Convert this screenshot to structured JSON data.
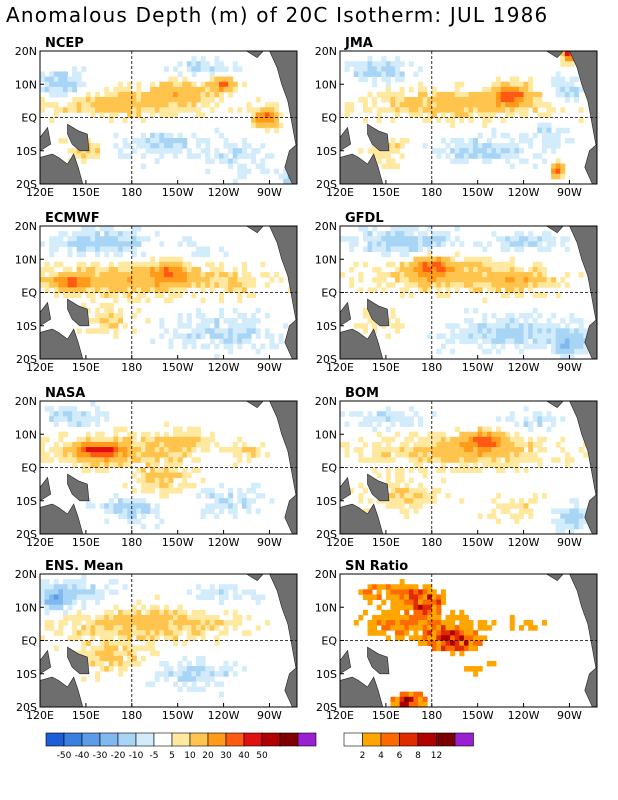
{
  "figure": {
    "title": "Anomalous Depth (m) of 20C Isotherm: JUL 1986"
  },
  "axes": {
    "x_ticks": [
      "120E",
      "150E",
      "180",
      "150W",
      "120W",
      "90W"
    ],
    "y_ticks": [
      "20N",
      "10N",
      "EQ",
      "10S",
      "20S"
    ]
  },
  "colorbars": {
    "anomaly": {
      "labels": [
        "-50",
        "-40",
        "-30",
        "-20",
        "-10",
        "-5",
        "5",
        "10",
        "20",
        "30",
        "40",
        "50"
      ],
      "colors": [
        "#1a5fd6",
        "#3a7fe0",
        "#5b9be8",
        "#80b8ef",
        "#a8d4f5",
        "#d2ecfb",
        "#ffffff",
        "#ffe9a0",
        "#ffc44d",
        "#ff9a1a",
        "#ff5a14",
        "#e01010",
        "#b00000",
        "#800000",
        "#9a1fd0"
      ]
    },
    "sn_ratio": {
      "labels": [
        "2",
        "4",
        "6",
        "8",
        "12"
      ],
      "colors": [
        "#ffffff",
        "#ffa500",
        "#ff6a00",
        "#e02a00",
        "#b00000",
        "#7a0000",
        "#9a1fd0"
      ]
    }
  },
  "chart_data": [
    {
      "type": "heatmap",
      "title": "NCEP",
      "x_ticks": [
        "120E",
        "150E",
        "180",
        "150W",
        "120W",
        "90W"
      ],
      "y_ticks": [
        "20N",
        "10N",
        "EQ",
        "10S",
        "20S"
      ],
      "xlim": [
        120,
        288
      ],
      "ylim": [
        -20,
        20
      ],
      "values": "anomaly (m)",
      "blobs": [
        {
          "lon": 175,
          "lat": 4,
          "rx": 45,
          "ry": 4,
          "v": 15
        },
        {
          "lon": 215,
          "lat": 8,
          "rx": 22,
          "ry": 3,
          "v": 15
        },
        {
          "lon": 240,
          "lat": 10,
          "rx": 6,
          "ry": 2,
          "v": 32
        },
        {
          "lon": 268,
          "lat": 0,
          "rx": 8,
          "ry": 3,
          "v": 30
        },
        {
          "lon": 150,
          "lat": -10,
          "rx": 12,
          "ry": 3,
          "v": 12
        },
        {
          "lon": 135,
          "lat": 10,
          "rx": 15,
          "ry": 4,
          "v": -15
        },
        {
          "lon": 200,
          "lat": -8,
          "rx": 28,
          "ry": 4,
          "v": -12
        },
        {
          "lon": 250,
          "lat": -12,
          "rx": 18,
          "ry": 5,
          "v": -8
        },
        {
          "lon": 225,
          "lat": 15,
          "rx": 18,
          "ry": 3,
          "v": -10
        },
        {
          "lon": 285,
          "lat": -18,
          "rx": 5,
          "ry": 2,
          "v": -25
        }
      ]
    },
    {
      "type": "heatmap",
      "title": "JMA",
      "x_ticks": [
        "120E",
        "150E",
        "180",
        "150W",
        "120W",
        "90W"
      ],
      "y_ticks": [
        "20N",
        "10N",
        "EQ",
        "10S",
        "20S"
      ],
      "xlim": [
        120,
        288
      ],
      "ylim": [
        -20,
        20
      ],
      "values": "anomaly (m)",
      "blobs": [
        {
          "lon": 200,
          "lat": 4,
          "rx": 60,
          "ry": 4,
          "v": 15
        },
        {
          "lon": 232,
          "lat": 7,
          "rx": 12,
          "ry": 3,
          "v": 30
        },
        {
          "lon": 262,
          "lat": -16,
          "rx": 4,
          "ry": 2,
          "v": 35
        },
        {
          "lon": 150,
          "lat": -10,
          "rx": 12,
          "ry": 4,
          "v": 12
        },
        {
          "lon": 145,
          "lat": 14,
          "rx": 22,
          "ry": 3,
          "v": -12
        },
        {
          "lon": 215,
          "lat": -10,
          "rx": 30,
          "ry": 4,
          "v": -12
        },
        {
          "lon": 268,
          "lat": 8,
          "rx": 10,
          "ry": 4,
          "v": -15
        },
        {
          "lon": 255,
          "lat": -5,
          "rx": 10,
          "ry": 4,
          "v": -8
        },
        {
          "lon": 270,
          "lat": 19,
          "rx": 4,
          "ry": 2,
          "v": 45
        }
      ]
    },
    {
      "type": "heatmap",
      "title": "ECMWF",
      "x_ticks": [
        "120E",
        "150E",
        "180",
        "150W",
        "120W",
        "90W"
      ],
      "y_ticks": [
        "20N",
        "10N",
        "EQ",
        "10S",
        "20S"
      ],
      "xlim": [
        120,
        288
      ],
      "ylim": [
        -20,
        20
      ],
      "values": "anomaly (m)",
      "blobs": [
        {
          "lon": 185,
          "lat": 4,
          "rx": 60,
          "ry": 5,
          "v": 17
        },
        {
          "lon": 140,
          "lat": 3,
          "rx": 12,
          "ry": 2,
          "v": 28
        },
        {
          "lon": 205,
          "lat": 6,
          "rx": 10,
          "ry": 3,
          "v": 22
        },
        {
          "lon": 165,
          "lat": -8,
          "rx": 20,
          "ry": 4,
          "v": 10
        },
        {
          "lon": 160,
          "lat": 15,
          "rx": 30,
          "ry": 4,
          "v": -14
        },
        {
          "lon": 240,
          "lat": -12,
          "rx": 35,
          "ry": 5,
          "v": -10
        },
        {
          "lon": 225,
          "lat": 12,
          "rx": 20,
          "ry": 3,
          "v": -8
        },
        {
          "lon": 250,
          "lat": 2,
          "rx": 10,
          "ry": 3,
          "v": 8
        }
      ]
    },
    {
      "type": "heatmap",
      "title": "GFDL",
      "x_ticks": [
        "120E",
        "150E",
        "180",
        "150W",
        "120W",
        "90W"
      ],
      "y_ticks": [
        "20N",
        "10N",
        "EQ",
        "10S",
        "20S"
      ],
      "xlim": [
        120,
        288
      ],
      "ylim": [
        -20,
        20
      ],
      "values": "anomaly (m)",
      "blobs": [
        {
          "lon": 195,
          "lat": 5,
          "rx": 55,
          "ry": 5,
          "v": 15
        },
        {
          "lon": 180,
          "lat": 8,
          "rx": 12,
          "ry": 3,
          "v": 25
        },
        {
          "lon": 240,
          "lat": 3,
          "rx": 20,
          "ry": 3,
          "v": 10
        },
        {
          "lon": 145,
          "lat": -8,
          "rx": 15,
          "ry": 4,
          "v": 8
        },
        {
          "lon": 160,
          "lat": 15,
          "rx": 30,
          "ry": 4,
          "v": -15
        },
        {
          "lon": 230,
          "lat": -12,
          "rx": 35,
          "ry": 5,
          "v": -12
        },
        {
          "lon": 270,
          "lat": -15,
          "rx": 10,
          "ry": 4,
          "v": -20
        },
        {
          "lon": 240,
          "lat": 15,
          "rx": 25,
          "ry": 3,
          "v": -10
        }
      ]
    },
    {
      "type": "heatmap",
      "title": "NASA",
      "x_ticks": [
        "120E",
        "150E",
        "180",
        "150W",
        "120W",
        "90W"
      ],
      "y_ticks": [
        "20N",
        "10N",
        "EQ",
        "10S",
        "20S"
      ],
      "xlim": [
        120,
        288
      ],
      "ylim": [
        -20,
        20
      ],
      "values": "anomaly (m)",
      "blobs": [
        {
          "lon": 170,
          "lat": 5,
          "rx": 45,
          "ry": 5,
          "v": 15
        },
        {
          "lon": 158,
          "lat": 5,
          "rx": 14,
          "ry": 2,
          "v": 35
        },
        {
          "lon": 215,
          "lat": 8,
          "rx": 15,
          "ry": 3,
          "v": 12
        },
        {
          "lon": 200,
          "lat": -5,
          "rx": 20,
          "ry": 5,
          "v": 10
        },
        {
          "lon": 140,
          "lat": 15,
          "rx": 20,
          "ry": 3,
          "v": -12
        },
        {
          "lon": 180,
          "lat": -12,
          "rx": 20,
          "ry": 4,
          "v": -14
        },
        {
          "lon": 240,
          "lat": -10,
          "rx": 22,
          "ry": 4,
          "v": -10
        },
        {
          "lon": 255,
          "lat": 5,
          "rx": 10,
          "ry": 3,
          "v": 10
        }
      ]
    },
    {
      "type": "heatmap",
      "title": "BOM",
      "x_ticks": [
        "120E",
        "150E",
        "180",
        "150W",
        "120W",
        "90W"
      ],
      "y_ticks": [
        "20N",
        "10N",
        "EQ",
        "10S",
        "20S"
      ],
      "xlim": [
        120,
        288
      ],
      "ylim": [
        -20,
        20
      ],
      "values": "anomaly (m)",
      "blobs": [
        {
          "lon": 200,
          "lat": 5,
          "rx": 55,
          "ry": 5,
          "v": 15
        },
        {
          "lon": 215,
          "lat": 8,
          "rx": 12,
          "ry": 3,
          "v": 25
        },
        {
          "lon": 160,
          "lat": -8,
          "rx": 25,
          "ry": 5,
          "v": 10
        },
        {
          "lon": 150,
          "lat": 15,
          "rx": 25,
          "ry": 3,
          "v": -10
        },
        {
          "lon": 270,
          "lat": -15,
          "rx": 10,
          "ry": 4,
          "v": -15
        },
        {
          "lon": 245,
          "lat": 14,
          "rx": 20,
          "ry": 3,
          "v": -8
        },
        {
          "lon": 235,
          "lat": -12,
          "rx": 20,
          "ry": 4,
          "v": 8
        }
      ]
    },
    {
      "type": "heatmap",
      "title": "ENS. Mean",
      "x_ticks": [
        "120E",
        "150E",
        "180",
        "150W",
        "120W",
        "90W"
      ],
      "y_ticks": [
        "20N",
        "10N",
        "EQ",
        "10S",
        "20S"
      ],
      "xlim": [
        120,
        288
      ],
      "ylim": [
        -20,
        20
      ],
      "values": "anomaly (m)",
      "blobs": [
        {
          "lon": 190,
          "lat": 5,
          "rx": 55,
          "ry": 5,
          "v": 14
        },
        {
          "lon": 165,
          "lat": -5,
          "rx": 25,
          "ry": 5,
          "v": 10
        },
        {
          "lon": 145,
          "lat": 14,
          "rx": 25,
          "ry": 4,
          "v": -12
        },
        {
          "lon": 130,
          "lat": 12,
          "rx": 8,
          "ry": 3,
          "v": -22
        },
        {
          "lon": 220,
          "lat": -10,
          "rx": 30,
          "ry": 4,
          "v": -10
        },
        {
          "lon": 240,
          "lat": 14,
          "rx": 22,
          "ry": 3,
          "v": -8
        }
      ]
    },
    {
      "type": "heatmap",
      "title": "SN Ratio",
      "x_ticks": [
        "120E",
        "150E",
        "180",
        "150W",
        "120W",
        "90W"
      ],
      "y_ticks": [
        "20N",
        "10N",
        "EQ",
        "10S",
        "20S"
      ],
      "xlim": [
        120,
        288
      ],
      "ylim": [
        -20,
        20
      ],
      "values": "signal-to-noise ratio",
      "blobs": [
        {
          "lon": 170,
          "lat": 5,
          "rx": 40,
          "ry": 6,
          "v": 4
        },
        {
          "lon": 195,
          "lat": 0,
          "rx": 15,
          "ry": 3,
          "v": 8
        },
        {
          "lon": 175,
          "lat": 12,
          "rx": 12,
          "ry": 3,
          "v": 6
        },
        {
          "lon": 150,
          "lat": 15,
          "rx": 20,
          "ry": 3,
          "v": 4
        },
        {
          "lon": 165,
          "lat": -18,
          "rx": 10,
          "ry": 2,
          "v": 12
        },
        {
          "lon": 210,
          "lat": -8,
          "rx": 20,
          "ry": 3,
          "v": 2
        },
        {
          "lon": 240,
          "lat": 5,
          "rx": 20,
          "ry": 4,
          "v": 2
        }
      ]
    }
  ]
}
